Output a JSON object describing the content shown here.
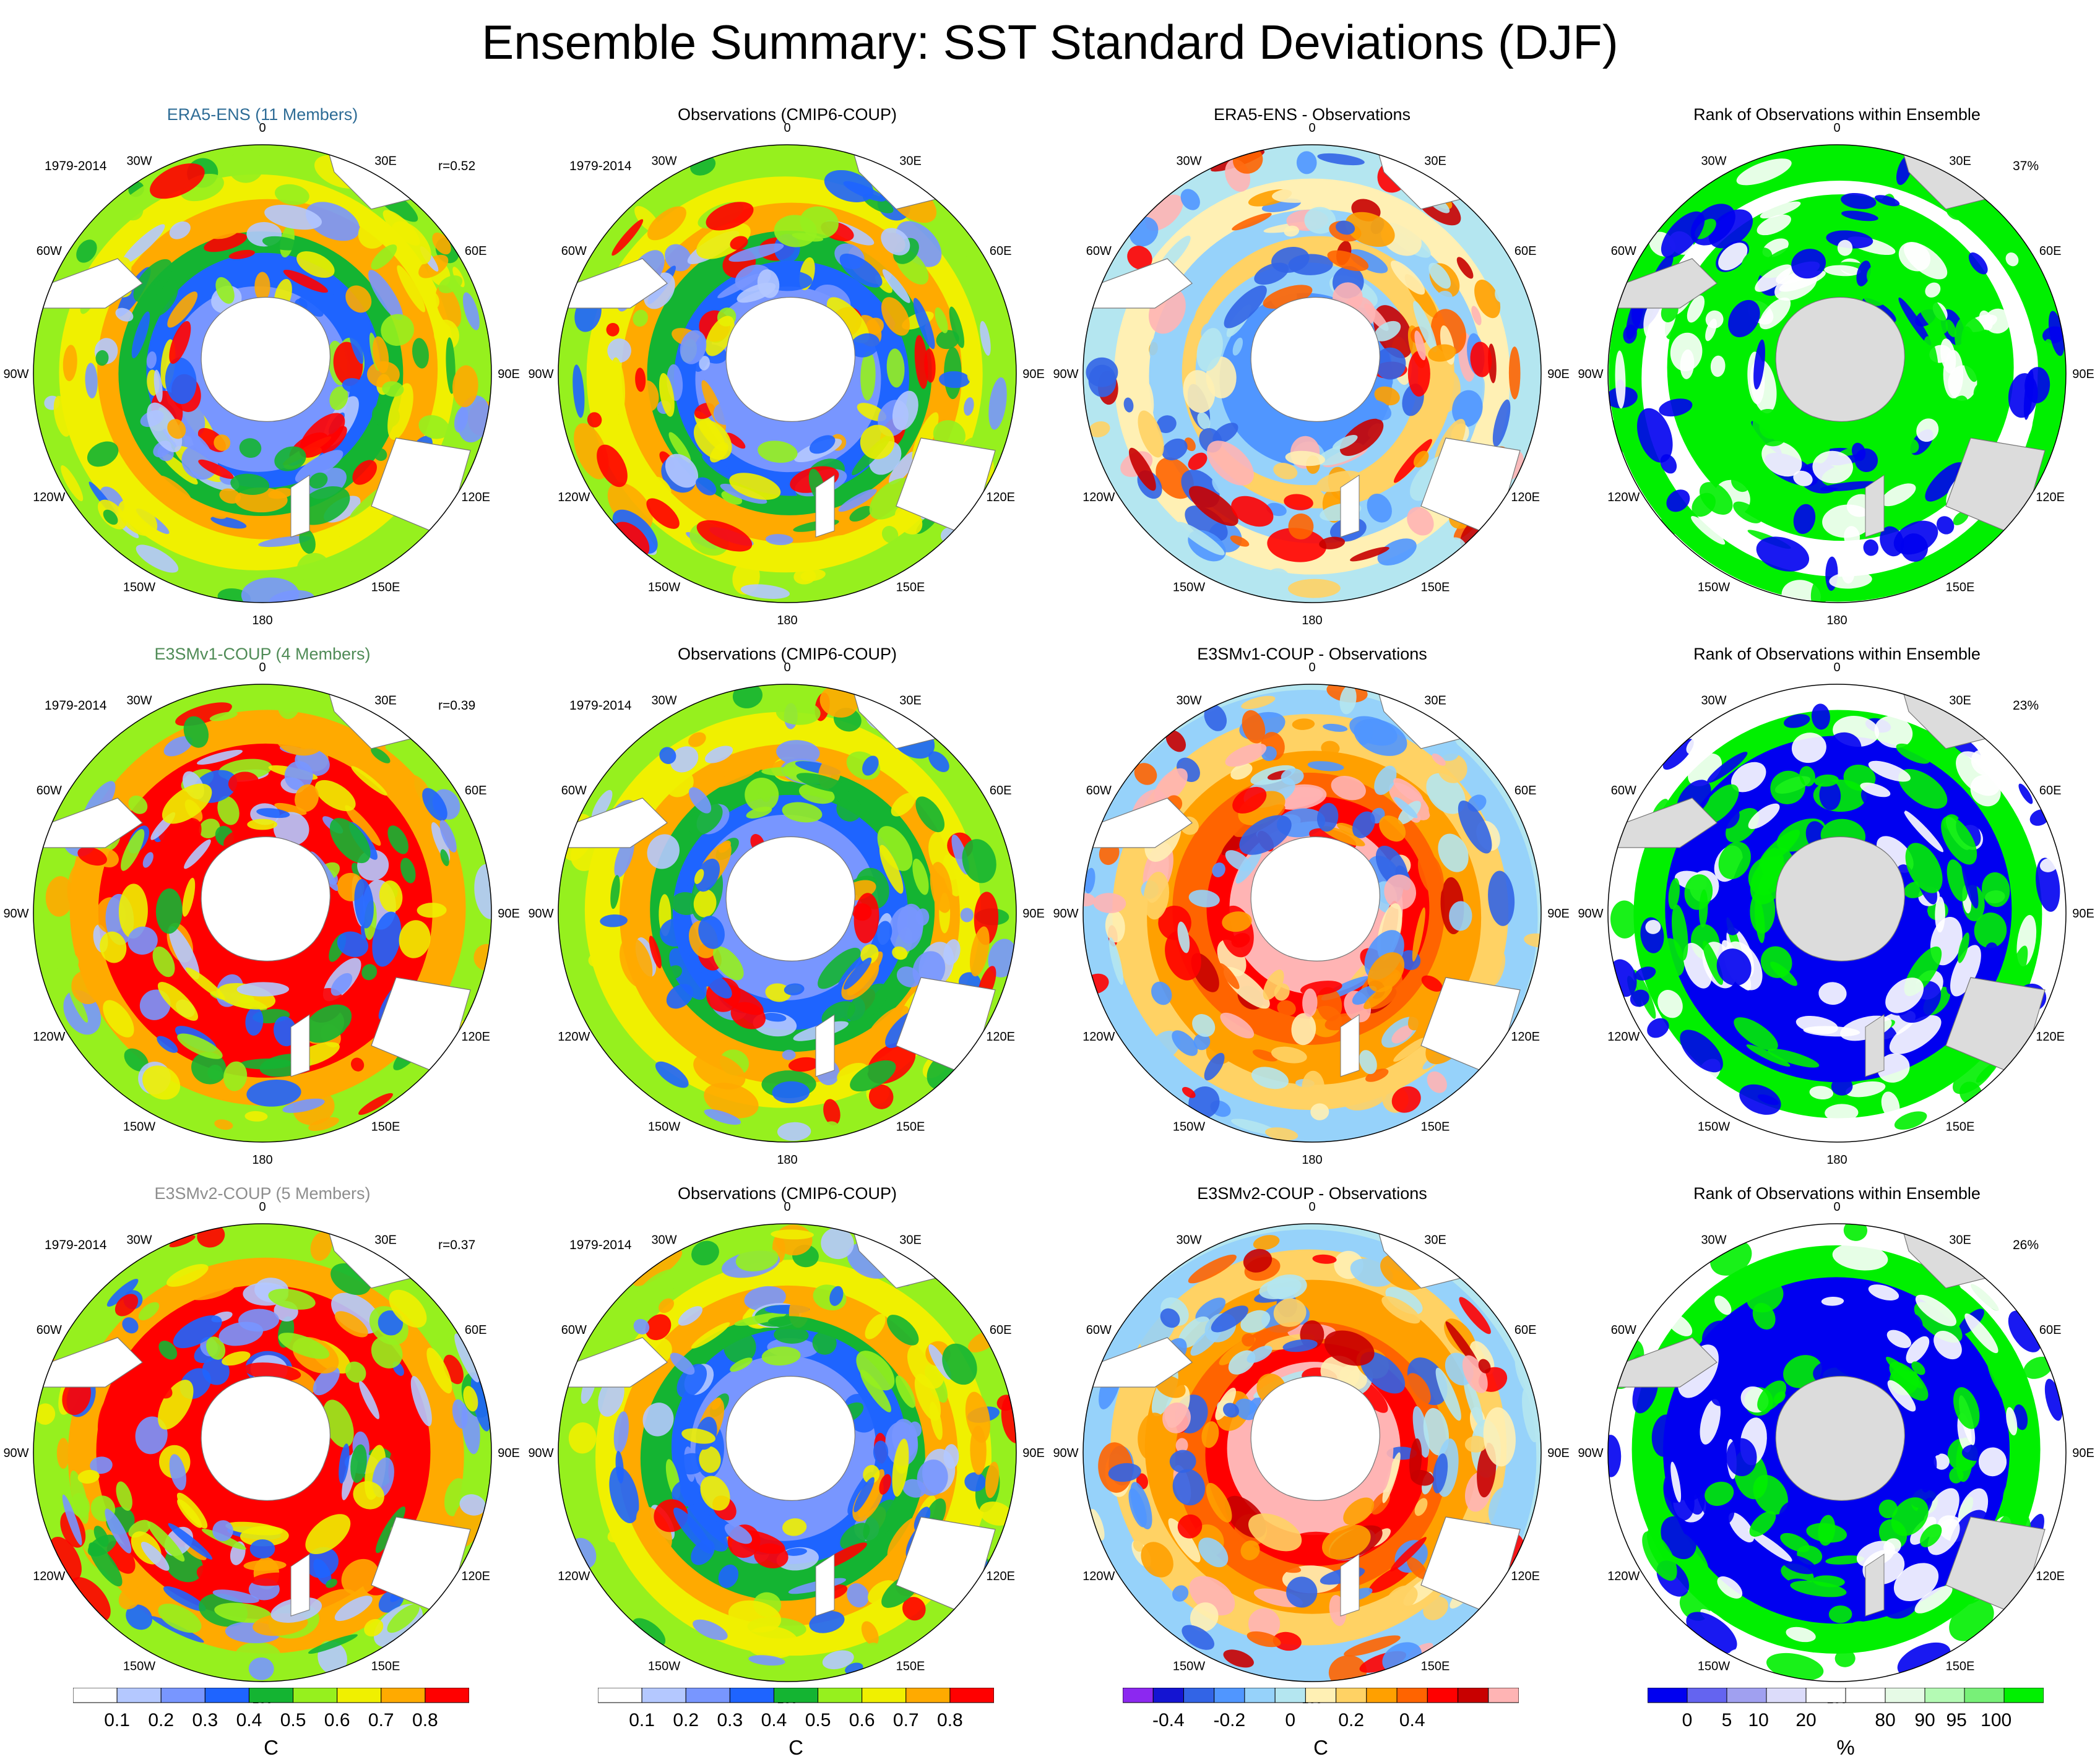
{
  "title": "Ensemble Summary: SST Standard Deviations (DJF)",
  "lon_labels": [
    "0",
    "30E",
    "60E",
    "90E",
    "120E",
    "150E",
    "180",
    "150W",
    "120W",
    "90W",
    "60W",
    "30W"
  ],
  "title_colors": {
    "era5": "#2e6c96",
    "e3smv1": "#4f8b56",
    "e3smv2": "#8d8d8d",
    "default": "#000000"
  },
  "panels": [
    {
      "title": "ERA5-ENS (11 Members)",
      "title_color": "era5",
      "period": "1979-2014",
      "stat": "r=0.52",
      "kind": "sd"
    },
    {
      "title": "Observations (CMIP6-COUP)",
      "title_color": "default",
      "period": "1979-2014",
      "stat": "",
      "kind": "sd"
    },
    {
      "title": "ERA5-ENS - Observations",
      "title_color": "default",
      "period": "",
      "stat": "",
      "kind": "diff"
    },
    {
      "title": "Rank of Observations within Ensemble",
      "title_color": "default",
      "period": "",
      "stat": "37%",
      "kind": "rank"
    },
    {
      "title": "E3SMv1-COUP (4 Members)",
      "title_color": "e3smv1",
      "period": "1979-2014",
      "stat": "r=0.39",
      "kind": "sd"
    },
    {
      "title": "Observations (CMIP6-COUP)",
      "title_color": "default",
      "period": "1979-2014",
      "stat": "",
      "kind": "sd"
    },
    {
      "title": "E3SMv1-COUP - Observations",
      "title_color": "default",
      "period": "",
      "stat": "",
      "kind": "diff"
    },
    {
      "title": "Rank of Observations within Ensemble",
      "title_color": "default",
      "period": "",
      "stat": "23%",
      "kind": "rank"
    },
    {
      "title": "E3SMv2-COUP (5 Members)",
      "title_color": "e3smv2",
      "period": "1979-2014",
      "stat": "r=0.37",
      "kind": "sd"
    },
    {
      "title": "Observations (CMIP6-COUP)",
      "title_color": "default",
      "period": "1979-2014",
      "stat": "",
      "kind": "sd"
    },
    {
      "title": "E3SMv2-COUP - Observations",
      "title_color": "default",
      "period": "",
      "stat": "",
      "kind": "diff"
    },
    {
      "title": "Rank of Observations within Ensemble",
      "title_color": "default",
      "period": "",
      "stat": "26%",
      "kind": "rank"
    }
  ],
  "colorbars": [
    {
      "unit": "C",
      "colors": [
        "#ffffff",
        "#b4c8ff",
        "#7896ff",
        "#1e64ff",
        "#14b432",
        "#96f01e",
        "#f0f000",
        "#ffaa00",
        "#ff0000"
      ],
      "labels": [
        "0.1",
        "0.2",
        "0.3",
        "0.4",
        "0.5",
        "0.6",
        "0.7",
        "0.8"
      ]
    },
    {
      "unit": "C",
      "colors": [
        "#ffffff",
        "#b4c8ff",
        "#7896ff",
        "#1e64ff",
        "#14b432",
        "#96f01e",
        "#f0f000",
        "#ffaa00",
        "#ff0000"
      ],
      "labels": [
        "0.1",
        "0.2",
        "0.3",
        "0.4",
        "0.5",
        "0.6",
        "0.7",
        "0.8"
      ]
    },
    {
      "unit": "C",
      "colors": [
        "#8c28f0",
        "#1414d2",
        "#3264e6",
        "#5096ff",
        "#96d2fa",
        "#b4e6f0",
        "#fff0b4",
        "#ffd264",
        "#ffa000",
        "#ff6400",
        "#ff0000",
        "#c80000",
        "#ffb4b4"
      ],
      "labels": [
        "-0.4",
        "-0.2",
        "0",
        "0.2",
        "0.4"
      ],
      "label_positions": [
        1.5,
        3.5,
        5.5,
        7.5,
        9.5
      ]
    },
    {
      "unit": "%",
      "colors": [
        "#0000f0",
        "#6464f0",
        "#a0a0f0",
        "#dcdcfa",
        "#ffffff",
        "#ffffff",
        "#e6fae6",
        "#b4fab4",
        "#78f078",
        "#00f000"
      ],
      "labels": [
        "0",
        "5",
        "10",
        "20",
        "80",
        "90",
        "95",
        "100"
      ],
      "label_positions": [
        1,
        2,
        2.8,
        4,
        6,
        7,
        7.8,
        8.8
      ]
    }
  ]
}
